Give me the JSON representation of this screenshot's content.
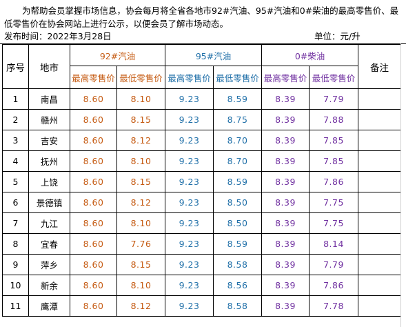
{
  "intro": "为帮助会员掌握市场信息，协会每月将全省各地市92#汽油、95#汽油和0#柴油的最高零售价、最低零售价在协会网站上进行公示，以便会员了解市场动态。",
  "publish_time": "发布时间：2022年3月28日",
  "unit": "单位：元/升",
  "colors": {
    "gas92": "#c55a11",
    "gas95": "#1f6fa8",
    "diesel0": "#7030a0"
  },
  "headers": {
    "index": "序号",
    "city": "地市",
    "gas92": "92#汽油",
    "gas95": "95#汽油",
    "diesel0": "0#柴油",
    "note": "备注",
    "max_price": "最高零售价",
    "min_price": "最低零售价"
  },
  "rows": [
    {
      "index": "1",
      "city": "南昌",
      "g92max": "8.60",
      "g92min": "8.10",
      "g95max": "9.23",
      "g95min": "8.59",
      "d0max": "8.39",
      "d0min": "7.79",
      "note": ""
    },
    {
      "index": "2",
      "city": "赣州",
      "g92max": "8.60",
      "g92min": "8.15",
      "g95max": "9.23",
      "g95min": "8.75",
      "d0max": "8.39",
      "d0min": "7.88",
      "note": ""
    },
    {
      "index": "3",
      "city": "吉安",
      "g92max": "8.60",
      "g92min": "8.12",
      "g95max": "9.23",
      "g95min": "8.70",
      "d0max": "8.39",
      "d0min": "7.85",
      "note": ""
    },
    {
      "index": "4",
      "city": "抚州",
      "g92max": "8.60",
      "g92min": "8.10",
      "g95max": "9.23",
      "g95min": "8.70",
      "d0max": "8.39",
      "d0min": "7.85",
      "note": ""
    },
    {
      "index": "5",
      "city": "上饶",
      "g92max": "8.60",
      "g92min": "8.15",
      "g95max": "9.23",
      "g95min": "8.59",
      "d0max": "8.39",
      "d0min": "7.86",
      "note": ""
    },
    {
      "index": "6",
      "city": "景德镇",
      "g92max": "8.60",
      "g92min": "8.12",
      "g95max": "9.23",
      "g95min": "8.50",
      "d0max": "8.39",
      "d0min": "7.75",
      "note": ""
    },
    {
      "index": "7",
      "city": "九江",
      "g92max": "8.60",
      "g92min": "8.10",
      "g95max": "9.23",
      "g95min": "8.50",
      "d0max": "8.39",
      "d0min": "7.75",
      "note": ""
    },
    {
      "index": "8",
      "city": "宜春",
      "g92max": "8.60",
      "g92min": "7.76",
      "g95max": "9.23",
      "g95min": "8.59",
      "d0max": "8.39",
      "d0min": "8.14",
      "note": ""
    },
    {
      "index": "9",
      "city": "萍乡",
      "g92max": "8.60",
      "g92min": "8.15",
      "g95max": "9.23",
      "g95min": "8.58",
      "d0max": "8.39",
      "d0min": "7.79",
      "note": ""
    },
    {
      "index": "10",
      "city": "新余",
      "g92max": "8.60",
      "g92min": "8.10",
      "g95max": "9.23",
      "g95min": "8.56",
      "d0max": "8.39",
      "d0min": "7.86",
      "note": ""
    },
    {
      "index": "11",
      "city": "鹰潭",
      "g92max": "8.60",
      "g92min": "8.12",
      "g95max": "9.23",
      "g95min": "8.58",
      "d0max": "8.39",
      "d0min": "7.78",
      "note": ""
    }
  ]
}
